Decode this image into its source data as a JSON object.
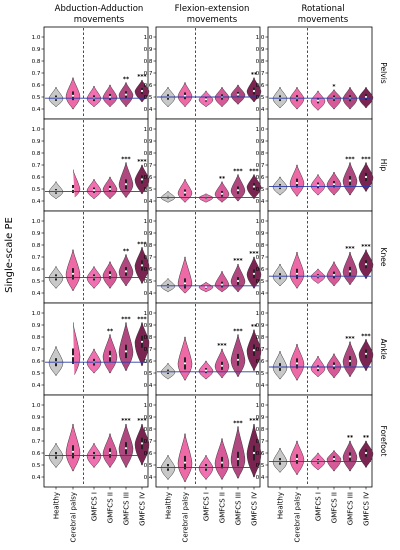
{
  "chart_data": {
    "type": "violin",
    "ylabel": "Single-scale PE",
    "ylim": [
      0.35,
      1.05
    ],
    "yticks": [
      "0.4",
      "0.5",
      "0.6",
      "0.7",
      "0.8",
      "0.9",
      "1.0"
    ],
    "columns": [
      {
        "title_line1": "Abduction-Adduction",
        "title_line2": "movements"
      },
      {
        "title_line1": "Flexion-extension",
        "title_line2": "movements"
      },
      {
        "title_line1": "Rotational",
        "title_line2": "movements"
      }
    ],
    "rows": [
      "Pelvis",
      "Hip",
      "Knee",
      "Ankle",
      "Forefoot"
    ],
    "groups": [
      "Healthy",
      "Cerebral palsy",
      "GMFCS I",
      "GMFCS II",
      "GMFCS III",
      "GMFCS IV"
    ],
    "colors": {
      "Healthy": "#c8c8c8",
      "Cerebral palsy": "#ee6aa7",
      "GMFCS I": "#f070b2",
      "GMFCS II": "#d65a98",
      "GMFCS III": "#b04880",
      "GMFCS IV": "#7a2452",
      "reference_line": "#2a3aa8"
    },
    "panels": [
      {
        "row": "Pelvis",
        "column": 0,
        "reference": 0.49,
        "medians": [
          0.49,
          0.51,
          0.49,
          0.5,
          0.52,
          0.55
        ],
        "min": [
          0.42,
          0.4,
          0.42,
          0.42,
          0.42,
          0.46
        ],
        "max": [
          0.58,
          0.66,
          0.59,
          0.6,
          0.62,
          0.64
        ],
        "significance": [
          "",
          "",
          "",
          "",
          "**",
          "***"
        ]
      },
      {
        "row": "Pelvis",
        "column": 1,
        "reference": 0.5,
        "medians": [
          0.5,
          0.51,
          0.48,
          0.5,
          0.52,
          0.55
        ],
        "min": [
          0.42,
          0.42,
          0.42,
          0.42,
          0.44,
          0.46
        ],
        "max": [
          0.58,
          0.62,
          0.55,
          0.58,
          0.6,
          0.66
        ],
        "significance": [
          "",
          "",
          "",
          "",
          "",
          "**"
        ]
      },
      {
        "row": "Pelvis",
        "column": 2,
        "reference": 0.49,
        "medians": [
          0.49,
          0.49,
          0.47,
          0.49,
          0.49,
          0.5
        ],
        "min": [
          0.41,
          0.4,
          0.39,
          0.4,
          0.4,
          0.41
        ],
        "max": [
          0.58,
          0.58,
          0.55,
          0.56,
          0.58,
          0.58
        ],
        "significance": [
          "",
          "",
          "",
          "*",
          "",
          ""
        ]
      },
      {
        "row": "Hip",
        "column": 0,
        "reference": 0.48,
        "medians": [
          0.48,
          0.5,
          0.49,
          0.5,
          0.54,
          0.58
        ],
        "min": [
          0.42,
          0.42,
          0.42,
          0.42,
          0.43,
          0.46
        ],
        "max": [
          0.56,
          0.66,
          0.58,
          0.6,
          0.72,
          0.7
        ],
        "significance": [
          "",
          "",
          "",
          "",
          "***",
          "***"
        ]
      },
      {
        "row": "Hip",
        "column": 1,
        "reference": 0.43,
        "medians": [
          0.43,
          0.47,
          0.43,
          0.46,
          0.49,
          0.52
        ],
        "min": [
          0.39,
          0.39,
          0.39,
          0.39,
          0.4,
          0.42
        ],
        "max": [
          0.48,
          0.58,
          0.46,
          0.56,
          0.62,
          0.62
        ],
        "significance": [
          "",
          "",
          "",
          "**",
          "***",
          "***"
        ]
      },
      {
        "row": "Hip",
        "column": 2,
        "reference": 0.52,
        "medians": [
          0.52,
          0.55,
          0.53,
          0.54,
          0.57,
          0.6
        ],
        "min": [
          0.45,
          0.44,
          0.45,
          0.45,
          0.45,
          0.48
        ],
        "max": [
          0.6,
          0.7,
          0.62,
          0.64,
          0.72,
          0.72
        ],
        "significance": [
          "",
          "",
          "",
          "",
          "***",
          "***"
        ]
      },
      {
        "row": "Knee",
        "column": 0,
        "reference": 0.53,
        "medians": [
          0.53,
          0.56,
          0.53,
          0.55,
          0.58,
          0.63
        ],
        "min": [
          0.44,
          0.42,
          0.44,
          0.44,
          0.46,
          0.48
        ],
        "max": [
          0.62,
          0.76,
          0.62,
          0.66,
          0.72,
          0.78
        ],
        "significance": [
          "",
          "",
          "",
          "",
          "**",
          "***"
        ]
      },
      {
        "row": "Knee",
        "column": 1,
        "reference": 0.46,
        "medians": [
          0.46,
          0.48,
          0.45,
          0.47,
          0.5,
          0.56
        ],
        "min": [
          0.41,
          0.4,
          0.41,
          0.41,
          0.41,
          0.44
        ],
        "max": [
          0.52,
          0.7,
          0.49,
          0.58,
          0.64,
          0.7
        ],
        "significance": [
          "",
          "",
          "",
          "",
          "***",
          "***"
        ]
      },
      {
        "row": "Knee",
        "column": 2,
        "reference": 0.54,
        "medians": [
          0.54,
          0.56,
          0.54,
          0.55,
          0.58,
          0.64
        ],
        "min": [
          0.46,
          0.44,
          0.48,
          0.46,
          0.47,
          0.52
        ],
        "max": [
          0.64,
          0.74,
          0.6,
          0.66,
          0.74,
          0.76
        ],
        "significance": [
          "",
          "",
          "",
          "",
          "***",
          "***"
        ]
      },
      {
        "row": "Ankle",
        "column": 0,
        "reference": 0.59,
        "medians": [
          0.59,
          0.64,
          0.59,
          0.64,
          0.68,
          0.76
        ],
        "min": [
          0.48,
          0.46,
          0.5,
          0.5,
          0.52,
          0.56
        ],
        "max": [
          0.72,
          0.92,
          0.7,
          0.82,
          0.92,
          0.92
        ],
        "significance": [
          "",
          "",
          "",
          "**",
          "***",
          "***"
        ]
      },
      {
        "row": "Ankle",
        "column": 1,
        "reference": 0.51,
        "medians": [
          0.51,
          0.58,
          0.52,
          0.56,
          0.61,
          0.69
        ],
        "min": [
          0.45,
          0.44,
          0.45,
          0.46,
          0.47,
          0.52
        ],
        "max": [
          0.58,
          0.8,
          0.6,
          0.7,
          0.82,
          0.86
        ],
        "significance": [
          "",
          "",
          "",
          "***",
          "***",
          "**"
        ]
      },
      {
        "row": "Ankle",
        "column": 2,
        "reference": 0.55,
        "medians": [
          0.55,
          0.58,
          0.54,
          0.56,
          0.6,
          0.66
        ],
        "min": [
          0.45,
          0.44,
          0.47,
          0.46,
          0.47,
          0.52
        ],
        "max": [
          0.68,
          0.74,
          0.64,
          0.66,
          0.76,
          0.78
        ],
        "significance": [
          "",
          "",
          "",
          "",
          "***",
          "***"
        ]
      },
      {
        "row": "Forefoot",
        "column": 0,
        "reference": 0.58,
        "medians": [
          0.58,
          0.61,
          0.58,
          0.6,
          0.64,
          0.68
        ],
        "min": [
          0.48,
          0.45,
          0.48,
          0.48,
          0.48,
          0.5
        ],
        "max": [
          0.68,
          0.84,
          0.68,
          0.76,
          0.84,
          0.84
        ],
        "significance": [
          "",
          "",
          "",
          "",
          "***",
          "***"
        ]
      },
      {
        "row": "Forefoot",
        "column": 1,
        "reference": 0.48,
        "medians": [
          0.48,
          0.52,
          0.48,
          0.52,
          0.55,
          0.6
        ],
        "min": [
          0.38,
          0.36,
          0.38,
          0.38,
          0.39,
          0.4
        ],
        "max": [
          0.58,
          0.76,
          0.58,
          0.72,
          0.82,
          0.84
        ],
        "significance": [
          "",
          "",
          "",
          "",
          "***",
          "***"
        ]
      },
      {
        "row": "Forefoot",
        "column": 2,
        "reference": 0.53,
        "medians": [
          0.53,
          0.55,
          0.53,
          0.55,
          0.57,
          0.6
        ],
        "min": [
          0.44,
          0.42,
          0.46,
          0.45,
          0.45,
          0.48
        ],
        "max": [
          0.64,
          0.7,
          0.6,
          0.62,
          0.7,
          0.7
        ],
        "significance": [
          "",
          "",
          "",
          "",
          "**",
          "**"
        ]
      }
    ]
  }
}
